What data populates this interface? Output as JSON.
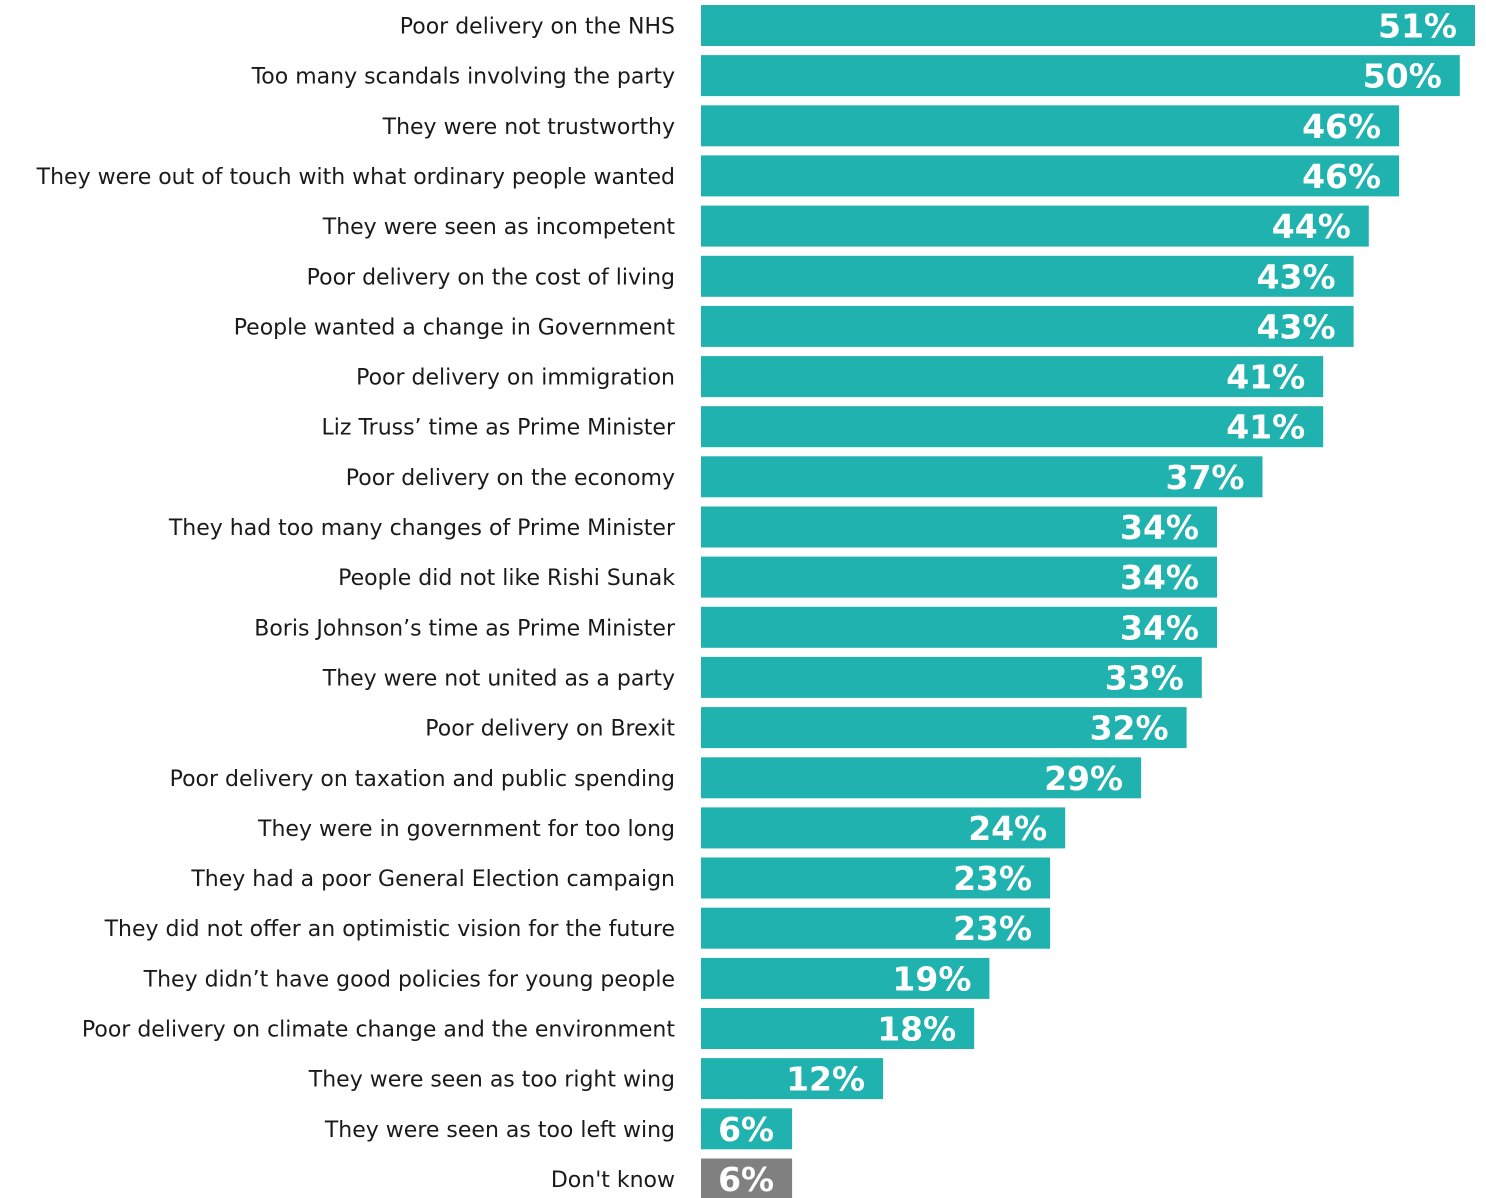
{
  "chart_data": {
    "type": "bar",
    "orientation": "horizontal",
    "title": "",
    "xlabel": "",
    "ylabel": "",
    "value_format": "percent",
    "xlim": [
      0,
      51
    ],
    "grid": false,
    "legend": "none",
    "colors": {
      "default": "#20b2ae",
      "highlight": "#808080"
    },
    "categories": [
      "Poor delivery on the NHS",
      "Too many scandals involving the party",
      "They were not trustworthy",
      "They were out of touch with what ordinary people wanted",
      "They were seen as incompetent",
      "Poor delivery on the cost of living",
      "People wanted a change in Government",
      "Poor delivery on immigration",
      "Liz Truss’ time as Prime Minister",
      "Poor delivery on the economy",
      "They had too many changes of Prime Minister",
      "People did not like Rishi Sunak",
      "Boris Johnson’s time as Prime Minister",
      "They were not united as a party",
      "Poor delivery on Brexit",
      "Poor delivery on taxation and public spending",
      "They were in government for too long",
      "They had a poor General Election campaign",
      "They did not offer an optimistic vision for the future",
      "They didn’t have good policies for young people",
      "Poor delivery on climate change and the environment",
      "They were seen as too right wing",
      "They were seen as too left wing",
      "Don't know"
    ],
    "values": [
      51,
      50,
      46,
      46,
      44,
      43,
      43,
      41,
      41,
      37,
      34,
      34,
      34,
      33,
      32,
      29,
      24,
      23,
      23,
      19,
      18,
      12,
      6,
      6
    ],
    "value_labels": [
      "51%",
      "50%",
      "46%",
      "46%",
      "44%",
      "43%",
      "43%",
      "41%",
      "41%",
      "37%",
      "34%",
      "34%",
      "34%",
      "33%",
      "32%",
      "29%",
      "24%",
      "23%",
      "23%",
      "19%",
      "18%",
      "12%",
      "6%",
      "6%"
    ],
    "highlight_categories": [
      "Don't know"
    ]
  }
}
